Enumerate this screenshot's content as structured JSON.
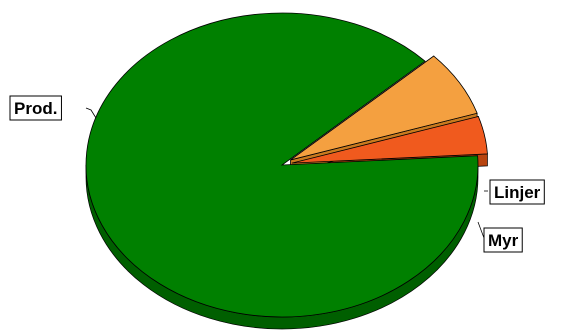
{
  "chart_data": {
    "type": "pie",
    "style": "3d-exploded",
    "title": "",
    "slices": [
      {
        "label": "Prod.",
        "value": 89,
        "color": "#008000",
        "side_color": "#005f00",
        "exploded": false,
        "label_side": "left"
      },
      {
        "label": "Linjer",
        "value": 4,
        "color": "#f05a1e",
        "side_color": "#b8440f",
        "exploded": true,
        "label_side": "right"
      },
      {
        "label": "Myr",
        "value": 7,
        "color": "#f4a040",
        "side_color": "#c97a1e",
        "exploded": true,
        "label_side": "right"
      }
    ],
    "legend": "none",
    "grid": false
  }
}
